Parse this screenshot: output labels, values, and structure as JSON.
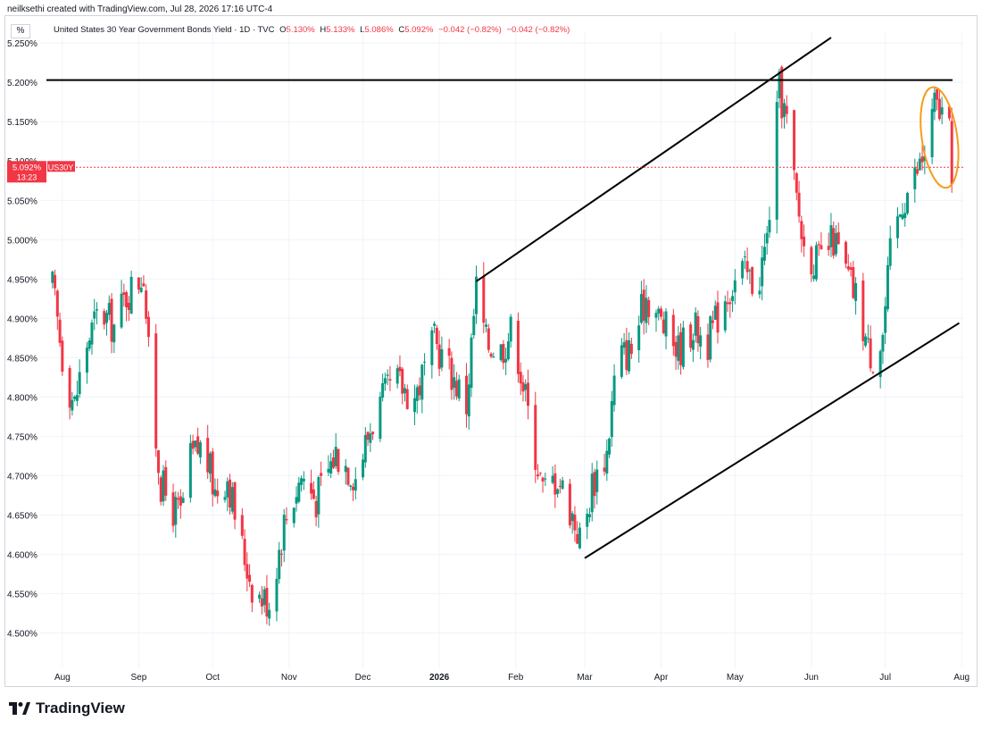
{
  "header": {
    "credit": "neilksethi created with TradingView.com, Jul 28, 2026 17:16 UTC-4",
    "scale_mode": "%"
  },
  "legend": {
    "symbol_title": "United States 30 Year Government Bonds Yield · 1D · TVC",
    "open_label": "O",
    "open": "5.130%",
    "high_label": "H",
    "high": "5.133%",
    "low_label": "L",
    "low": "5.086%",
    "close_label": "C",
    "close": "5.092%",
    "change": "−0.042 (−0.82%)",
    "change2": "−0.042 (−0.82%)"
  },
  "price_tag": {
    "value": "5.092%",
    "ticker": "US30Y",
    "countdown": "13:23"
  },
  "footer": {
    "brand": "TradingView"
  },
  "colors": {
    "up": "#089981",
    "down": "#f23645",
    "line": "#000000",
    "ellipse": "#f59d1a",
    "grid": "#f0f3fa"
  },
  "chart_data": {
    "type": "candlestick",
    "y_axis_ticks": [
      "5.250%",
      "5.200%",
      "5.150%",
      "5.100%",
      "5.050%",
      "5.000%",
      "4.950%",
      "4.900%",
      "4.850%",
      "4.800%",
      "4.750%",
      "4.700%",
      "4.650%",
      "4.600%",
      "4.550%",
      "4.500%"
    ],
    "x_axis_ticks": [
      "Aug",
      "Sep",
      "Oct",
      "Nov",
      "Dec",
      "2026",
      "Feb",
      "Mar",
      "Apr",
      "May",
      "Jun",
      "Jul",
      "Aug"
    ],
    "ylim": [
      4.455,
      5.265
    ],
    "last_close": 5.092,
    "path_points": [
      {
        "x": "2025-07-28",
        "y": 4.94
      },
      {
        "x": "2025-08-02",
        "y": 4.83
      },
      {
        "x": "2025-08-06",
        "y": 4.79
      },
      {
        "x": "2025-08-10",
        "y": 4.86
      },
      {
        "x": "2025-08-16",
        "y": 4.91
      },
      {
        "x": "2025-08-22",
        "y": 4.89
      },
      {
        "x": "2025-08-27",
        "y": 4.93
      },
      {
        "x": "2025-09-01",
        "y": 4.95
      },
      {
        "x": "2025-09-03",
        "y": 4.96
      },
      {
        "x": "2025-09-06",
        "y": 4.8
      },
      {
        "x": "2025-09-10",
        "y": 4.69
      },
      {
        "x": "2025-09-14",
        "y": 4.66
      },
      {
        "x": "2025-09-18",
        "y": 4.65
      },
      {
        "x": "2025-09-22",
        "y": 4.72
      },
      {
        "x": "2025-09-27",
        "y": 4.74
      },
      {
        "x": "2025-10-02",
        "y": 4.68
      },
      {
        "x": "2025-10-07",
        "y": 4.7
      },
      {
        "x": "2025-10-12",
        "y": 4.62
      },
      {
        "x": "2025-10-18",
        "y": 4.55
      },
      {
        "x": "2025-10-24",
        "y": 4.54
      },
      {
        "x": "2025-10-30",
        "y": 4.64
      },
      {
        "x": "2025-11-06",
        "y": 4.7
      },
      {
        "x": "2025-11-12",
        "y": 4.67
      },
      {
        "x": "2025-11-20",
        "y": 4.73
      },
      {
        "x": "2025-11-28",
        "y": 4.7
      },
      {
        "x": "2025-12-06",
        "y": 4.78
      },
      {
        "x": "2025-12-14",
        "y": 4.82
      },
      {
        "x": "2025-12-22",
        "y": 4.8
      },
      {
        "x": "2025-12-30",
        "y": 4.87
      },
      {
        "x": "2026-01-06",
        "y": 4.83
      },
      {
        "x": "2026-01-12",
        "y": 4.79
      },
      {
        "x": "2026-01-16",
        "y": 4.94
      },
      {
        "x": "2026-01-20",
        "y": 4.87
      },
      {
        "x": "2026-01-26",
        "y": 4.86
      },
      {
        "x": "2026-01-31",
        "y": 4.89
      },
      {
        "x": "2026-02-06",
        "y": 4.78
      },
      {
        "x": "2026-02-12",
        "y": 4.68
      },
      {
        "x": "2026-02-18",
        "y": 4.7
      },
      {
        "x": "2026-02-24",
        "y": 4.65
      },
      {
        "x": "2026-02-28",
        "y": 4.61
      },
      {
        "x": "2026-03-04",
        "y": 4.69
      },
      {
        "x": "2026-03-10",
        "y": 4.73
      },
      {
        "x": "2026-03-14",
        "y": 4.85
      },
      {
        "x": "2026-03-20",
        "y": 4.86
      },
      {
        "x": "2026-03-26",
        "y": 4.93
      },
      {
        "x": "2026-04-02",
        "y": 4.89
      },
      {
        "x": "2026-04-08",
        "y": 4.86
      },
      {
        "x": "2026-04-14",
        "y": 4.89
      },
      {
        "x": "2026-04-20",
        "y": 4.87
      },
      {
        "x": "2026-04-27",
        "y": 4.93
      },
      {
        "x": "2026-05-04",
        "y": 4.96
      },
      {
        "x": "2026-05-10",
        "y": 4.94
      },
      {
        "x": "2026-05-14",
        "y": 5.0
      },
      {
        "x": "2026-05-17",
        "y": 5.12
      },
      {
        "x": "2026-05-19",
        "y": 5.19
      },
      {
        "x": "2026-05-22",
        "y": 5.15
      },
      {
        "x": "2026-05-25",
        "y": 5.07
      },
      {
        "x": "2026-05-29",
        "y": 4.99
      },
      {
        "x": "2026-06-04",
        "y": 4.97
      },
      {
        "x": "2026-06-10",
        "y": 5.0
      },
      {
        "x": "2026-06-16",
        "y": 4.95
      },
      {
        "x": "2026-06-20",
        "y": 4.92
      },
      {
        "x": "2026-06-24",
        "y": 4.86
      },
      {
        "x": "2026-06-27",
        "y": 4.85
      },
      {
        "x": "2026-06-30",
        "y": 4.88
      },
      {
        "x": "2026-07-03",
        "y": 4.98
      },
      {
        "x": "2026-07-08",
        "y": 5.05
      },
      {
        "x": "2026-07-13",
        "y": 5.08
      },
      {
        "x": "2026-07-17",
        "y": 5.11
      },
      {
        "x": "2026-07-21",
        "y": 5.17
      },
      {
        "x": "2026-07-24",
        "y": 5.16
      },
      {
        "x": "2026-07-27",
        "y": 5.13
      },
      {
        "x": "2026-07-28",
        "y": 5.092
      }
    ],
    "drawings": {
      "horizontal_line": {
        "y": 5.203
      },
      "channel_upper": [
        {
          "x": "2026-01-16",
          "y": 4.947
        },
        {
          "x": "2026-06-09",
          "y": 5.257
        }
      ],
      "channel_lower": [
        {
          "x": "2026-03-01",
          "y": 4.595
        },
        {
          "x": "2026-07-31",
          "y": 4.894
        }
      ],
      "highlight_ellipse": {
        "x_from": "2026-07-18",
        "x_to": "2026-07-28",
        "y_from": 5.07,
        "y_to": 5.19
      }
    }
  }
}
